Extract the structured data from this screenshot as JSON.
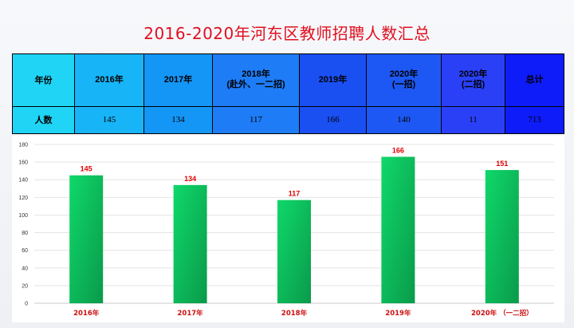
{
  "title": "2016-2020年河东区教师招聘人数汇总",
  "table": {
    "header": {
      "label": "年份",
      "cols": [
        "2016年",
        "2017年",
        "2018年\n(赴外、一二招)",
        "2019年",
        "2020年\n(一招)",
        "2020年\n(二招)",
        "总计"
      ]
    },
    "row": {
      "label": "人数",
      "values": [
        "145",
        "134",
        "117",
        "166",
        "140",
        "11",
        "713"
      ]
    }
  },
  "colors": {
    "title": "#e01020",
    "bar_top": "#0fd86a",
    "bar_bottom": "#0a9a4a",
    "data_label": "#e00000",
    "x_label": "#cc1010"
  },
  "chart_data": {
    "type": "bar",
    "categories": [
      "2016年",
      "2017年",
      "2018年",
      "2019年",
      "2020年 （一二招）"
    ],
    "values": [
      145,
      134,
      117,
      166,
      151
    ],
    "ylim": [
      0,
      180
    ],
    "yticks": [
      0,
      20,
      40,
      60,
      80,
      100,
      120,
      140,
      160,
      180
    ],
    "grid": true,
    "data_labels": true
  }
}
